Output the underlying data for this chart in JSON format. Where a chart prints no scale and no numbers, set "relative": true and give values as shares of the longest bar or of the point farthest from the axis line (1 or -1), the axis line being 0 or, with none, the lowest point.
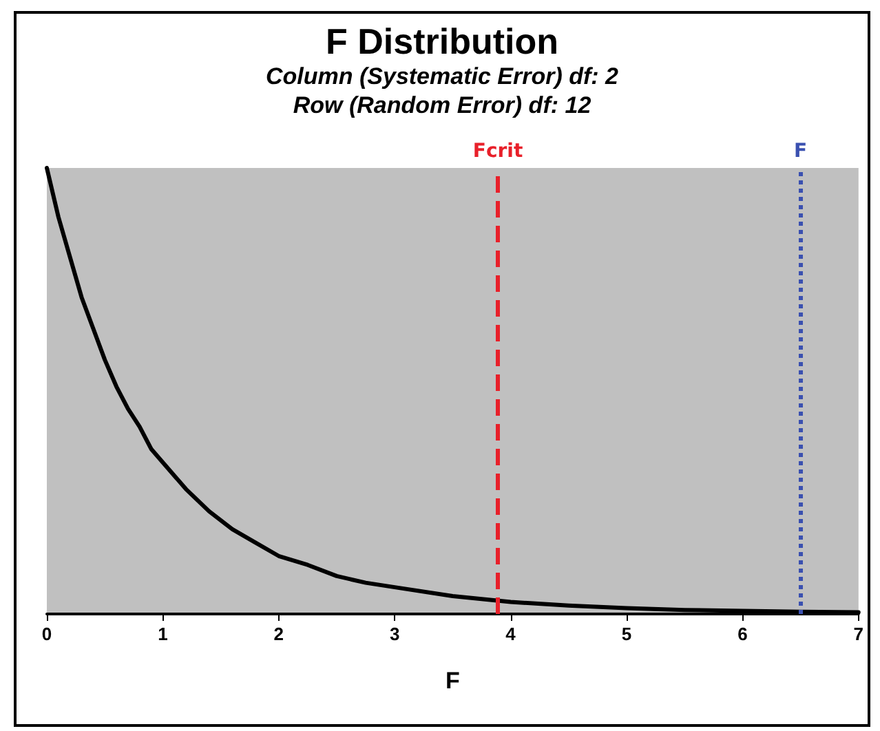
{
  "chart_data": {
    "type": "line",
    "title": "F Distribution",
    "subtitle": "Column (Systematic Error) df: 2\nRow (Random Error) df: 12",
    "xlabel": "F",
    "relative": true,
    "x": [
      0,
      0.1,
      0.2,
      0.3,
      0.4,
      0.5,
      0.6,
      0.7,
      0.8,
      0.9,
      1,
      1.2,
      1.4,
      1.6,
      1.8,
      2,
      2.25,
      2.5,
      2.75,
      3,
      3.5,
      4,
      4.5,
      5,
      5.5,
      6,
      6.5,
      7
    ],
    "series": [
      {
        "color": "#000000",
        "values": [
          1,
          0.89,
          0.8,
          0.71,
          0.64,
          0.57,
          0.51,
          0.46,
          0.42,
          0.37,
          0.34,
          0.28,
          0.23,
          0.19,
          0.16,
          0.13,
          0.11,
          0.085,
          0.07,
          0.06,
          0.04,
          0.027,
          0.019,
          0.013,
          0.009,
          0.007,
          0.005,
          0.004
        ]
      }
    ],
    "xlim": [
      0,
      7
    ],
    "xticks": [
      0,
      1,
      2,
      3,
      4,
      5,
      6,
      7
    ],
    "grid": false,
    "marker": "none",
    "line_style": "solid",
    "ref_lines": [
      {
        "axis": "x",
        "value": 3.89,
        "label": "Fcrit",
        "color": "#e8202a",
        "line_style": "dashed"
      },
      {
        "axis": "x",
        "value": 6.5,
        "label": "F",
        "color": "#3a50b0",
        "line_style": "dotted"
      }
    ]
  }
}
